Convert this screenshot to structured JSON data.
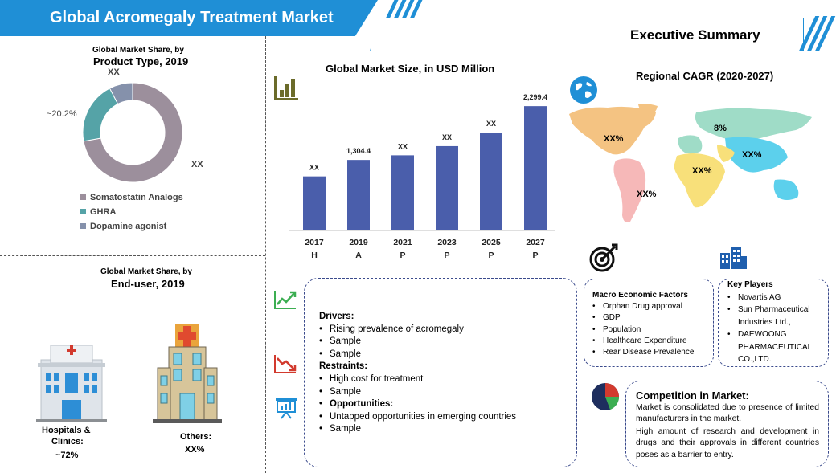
{
  "header": {
    "title": "Global Acromegaly Treatment Market",
    "executive_summary": "Executive Summary"
  },
  "donut": {
    "title_line1": "Global Market Share, by",
    "title_line2": "Product Type, 2019",
    "label_large": "XX",
    "label_teal": "~20.2%",
    "label_small": "XX",
    "legend": [
      "Somatostatin Analogs",
      "GHRA",
      "Dopamine agonist"
    ],
    "colors": [
      "#9c8f9c",
      "#55a3a7",
      "#8591ab"
    ]
  },
  "enduser": {
    "title_line1": "Global Market Share, by",
    "title_line2": "End-user, 2019",
    "hospitals_label_line1": "Hospitals &",
    "hospitals_label_line2": "Clinics:",
    "hospitals_value": "~72%",
    "others_label": "Others:",
    "others_value": "XX%"
  },
  "bar_chart": {
    "title": "Global Market Size, in USD Million"
  },
  "chart_data": [
    {
      "type": "bar",
      "title": "Global Market Size, in USD Million",
      "categories": [
        "2017",
        "2019",
        "2021",
        "2023",
        "2025",
        "2027"
      ],
      "sublabels": [
        "H",
        "A",
        "P",
        "P",
        "P",
        "P"
      ],
      "values": [
        1000,
        1304.4,
        1390,
        1560,
        1810,
        2299.4
      ],
      "data_labels": [
        "XX",
        "1,304.4",
        "XX",
        "XX",
        "XX",
        "2,299.4"
      ],
      "color": "#4a5eab",
      "ylim": [
        0,
        2450
      ]
    },
    {
      "type": "pie",
      "title": "Global Market Share, by Product Type, 2019",
      "categories": [
        "Somatostatin Analogs",
        "GHRA",
        "Dopamine agonist"
      ],
      "values": [
        72.2,
        20.2,
        7.6
      ],
      "data_labels": [
        "XX",
        "~20.2%",
        "XX"
      ]
    }
  ],
  "regional": {
    "title": "Regional CAGR (2020-2027)",
    "labels": [
      "XX%",
      "8%",
      "XX%",
      "XX%",
      "XX%"
    ]
  },
  "drivers": {
    "drivers_heading": "Drivers:",
    "drivers_items": [
      "Rising prevalence of acromegaly",
      "Sample",
      "Sample"
    ],
    "restraints_heading": "Restraints:",
    "restraints_items": [
      "High cost for treatment",
      "Sample"
    ],
    "opportunities_heading": "Opportunities:",
    "opportunities_items": [
      "Untapped opportunities in emerging countries",
      "Sample"
    ]
  },
  "macro": {
    "heading": "Macro Economic Factors",
    "items": [
      "Orphan Drug approval",
      "GDP",
      "Population",
      "Healthcare Expenditure",
      "Rear Disease Prevalence"
    ]
  },
  "key_players": {
    "heading": "Key Players",
    "items": [
      "Novartis AG",
      "Sun Pharmaceutical Industries Ltd.,",
      "DAEWOONG PHARMACEUTICAL CO.,LTD."
    ]
  },
  "competition": {
    "heading": "Competition in Market:",
    "para1": "Market is consolidated due to presence of limited manufacturers in the market.",
    "para2": "High amount of research and development in drugs and their approvals in different countries poses as a barrier to entry."
  },
  "icon_colors": {
    "olive": "#6b6b2a",
    "green": "#3cae52",
    "red": "#d23a2e",
    "navy": "#1e3a6e",
    "blue": "#1f8fd6"
  }
}
